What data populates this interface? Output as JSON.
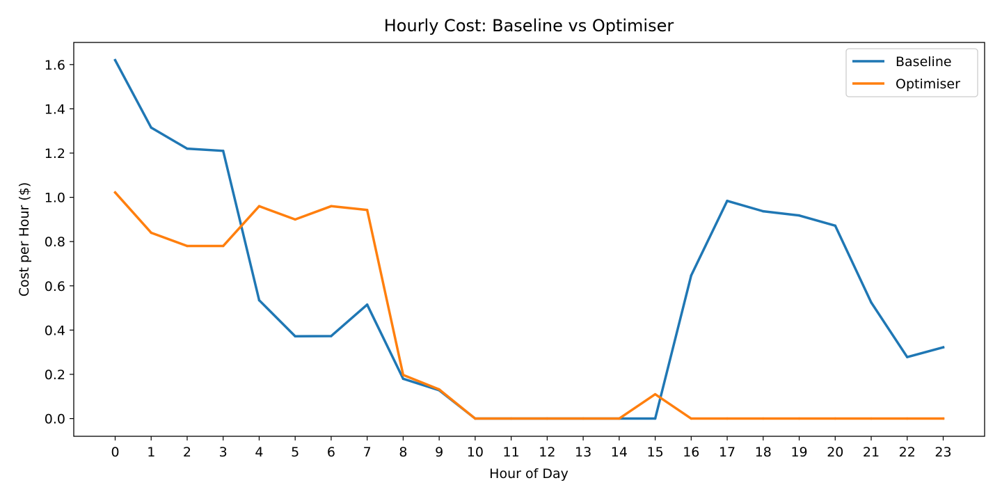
{
  "chart_data": {
    "type": "line",
    "title": "Hourly Cost: Baseline vs Optimiser",
    "xlabel": "Hour of Day",
    "ylabel": "Cost per Hour ($)",
    "x": [
      0,
      1,
      2,
      3,
      4,
      5,
      6,
      7,
      8,
      9,
      10,
      11,
      12,
      13,
      14,
      15,
      16,
      17,
      18,
      19,
      20,
      21,
      22,
      23
    ],
    "xlim": [
      -1.15,
      24.15
    ],
    "ylim": [
      -0.08,
      1.7
    ],
    "yticks": [
      "0.0",
      "0.2",
      "0.4",
      "0.6",
      "0.8",
      "1.0",
      "1.2",
      "1.4",
      "1.6"
    ],
    "grid": false,
    "legend_position": "top-right",
    "series": [
      {
        "name": "Baseline",
        "color": "#1f77b4",
        "values": [
          1.62,
          1.315,
          1.22,
          1.21,
          0.535,
          0.372,
          0.373,
          0.515,
          0.18,
          0.128,
          0.0,
          0.0,
          0.0,
          0.0,
          0.0,
          0.0,
          0.647,
          0.984,
          0.937,
          0.918,
          0.872,
          0.525,
          0.278,
          0.322
        ]
      },
      {
        "name": "Optimiser",
        "color": "#ff7f0e",
        "values": [
          1.022,
          0.84,
          0.78,
          0.78,
          0.96,
          0.9,
          0.96,
          0.943,
          0.197,
          0.132,
          0.0,
          0.0,
          0.0,
          0.0,
          0.0,
          0.11,
          0.0,
          0.0,
          0.0,
          0.0,
          0.0,
          0.0,
          0.0,
          0.0
        ]
      }
    ]
  }
}
